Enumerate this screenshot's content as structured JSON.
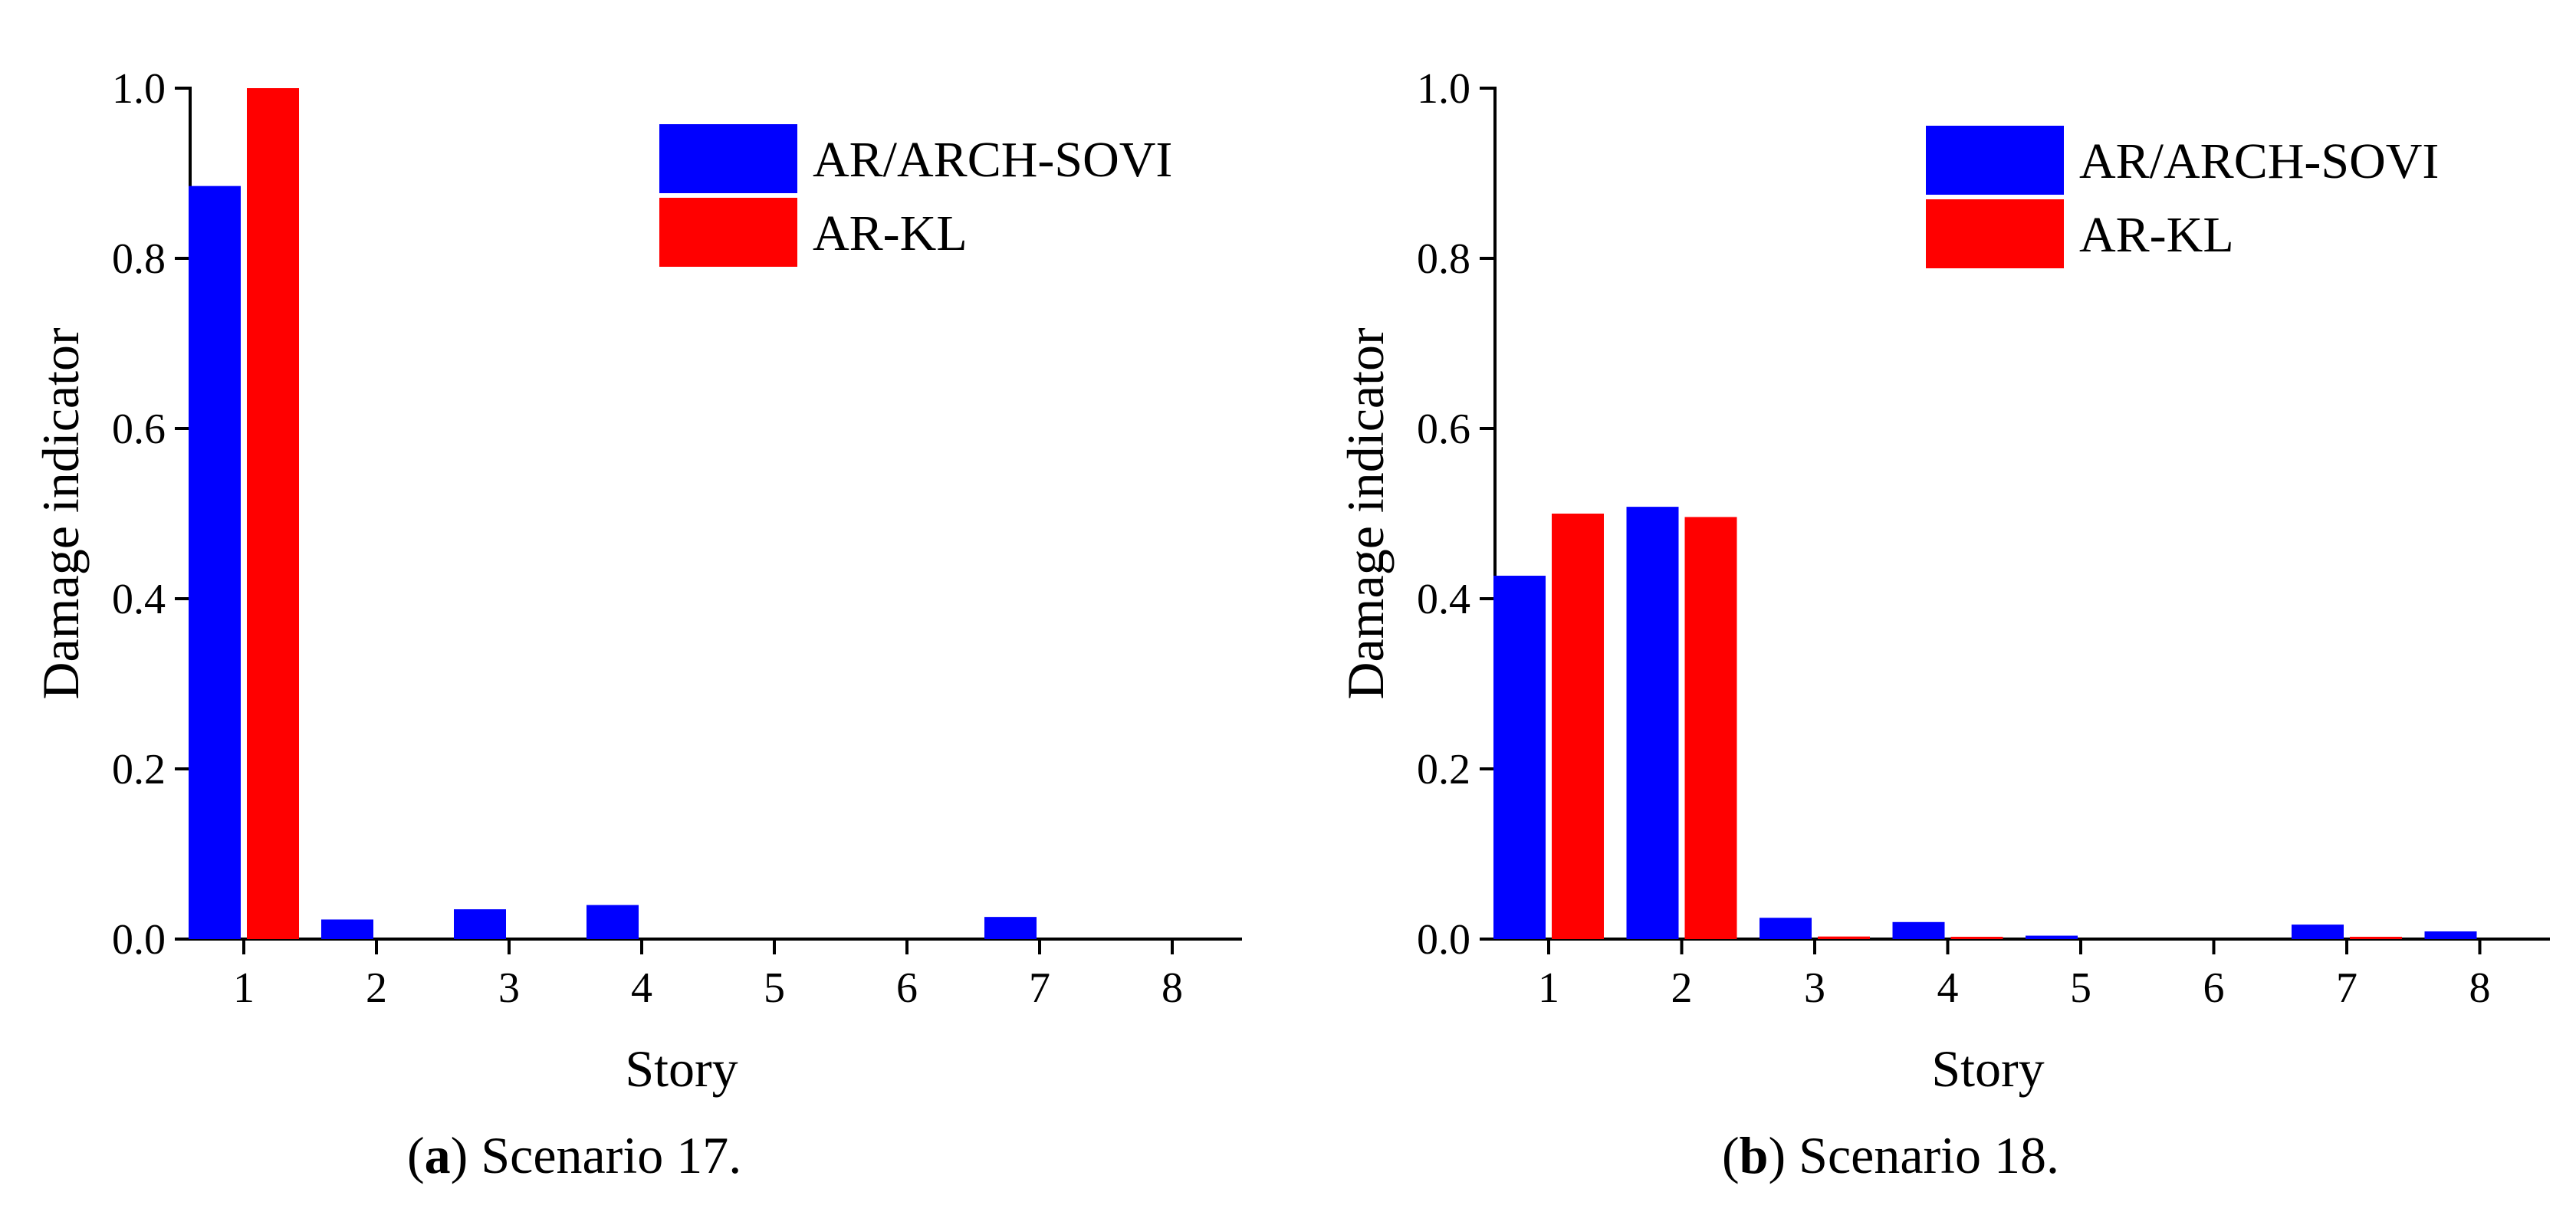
{
  "chart_data": [
    {
      "type": "bar",
      "caption_letter": "a",
      "caption_text": "Scenario 17.",
      "xlabel": "Story",
      "ylabel": "Damage indicator",
      "ylim": [
        0,
        1.0
      ],
      "yticks": [
        "0.0",
        "0.2",
        "0.4",
        "0.6",
        "0.8",
        "1.0"
      ],
      "categories": [
        "1",
        "2",
        "3",
        "4",
        "5",
        "6",
        "7",
        "8"
      ],
      "legend_position": "top-right",
      "series": [
        {
          "name": "AR/ARCH-SOVI",
          "color": "#0000ff",
          "values": [
            0.885,
            0.023,
            0.035,
            0.04,
            0,
            0,
            0.026,
            0
          ]
        },
        {
          "name": "AR-KL",
          "color": "#ff0000",
          "values": [
            1.0,
            0,
            0,
            0,
            0,
            0,
            0,
            0
          ]
        }
      ]
    },
    {
      "type": "bar",
      "caption_letter": "b",
      "caption_text": "Scenario 18.",
      "xlabel": "Story",
      "ylabel": "Damage indicator",
      "ylim": [
        0,
        1.0
      ],
      "yticks": [
        "0.0",
        "0.2",
        "0.4",
        "0.6",
        "0.8",
        "1.0"
      ],
      "categories": [
        "1",
        "2",
        "3",
        "4",
        "5",
        "6",
        "7",
        "8"
      ],
      "legend_position": "top-right",
      "series": [
        {
          "name": "AR/ARCH-SOVI",
          "color": "#0000ff",
          "values": [
            0.427,
            0.508,
            0.025,
            0.02,
            0.004,
            0,
            0.017,
            0.009
          ]
        },
        {
          "name": "AR-KL",
          "color": "#ff0000",
          "values": [
            0.5,
            0.496,
            0.003,
            0.002,
            0,
            0,
            0.002,
            0
          ]
        }
      ]
    }
  ]
}
